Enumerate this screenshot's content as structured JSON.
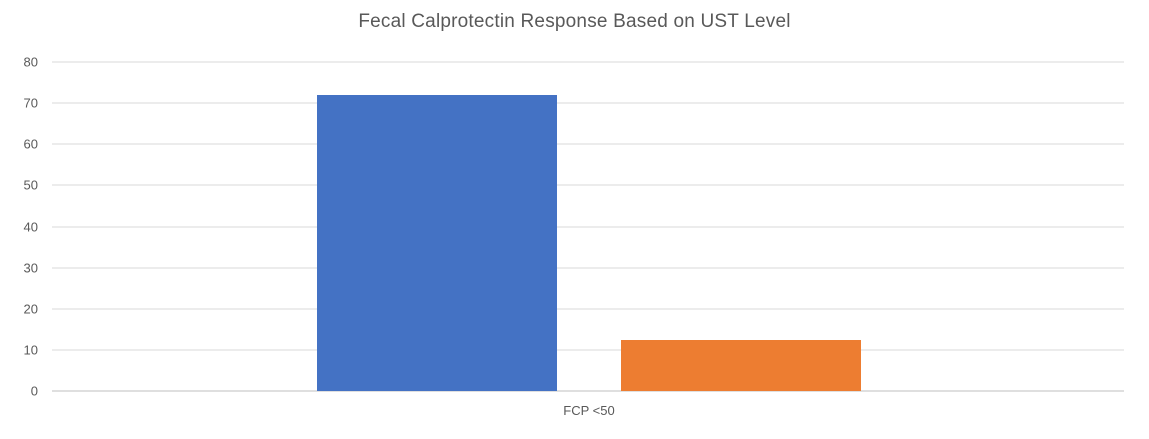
{
  "chart_data": {
    "type": "bar",
    "title": "Fecal Calprotectin Response Based on UST Level",
    "categories": [
      "FCP <50"
    ],
    "series": [
      {
        "values": [
          72
        ],
        "color": "#4472C4"
      },
      {
        "values": [
          12.5
        ],
        "color": "#ED7D31"
      }
    ],
    "xlabel": "",
    "ylabel": "",
    "ylim": [
      0,
      80
    ],
    "yticks": [
      0,
      10,
      20,
      30,
      40,
      50,
      60,
      70,
      80
    ],
    "grid": true,
    "legend_position": "none",
    "colors": {
      "gridline": "#D9D9D9",
      "axis_line": "#BFBFBF",
      "axis_text": "#595959",
      "title_text": "#595959",
      "background": "#FFFFFF"
    }
  }
}
